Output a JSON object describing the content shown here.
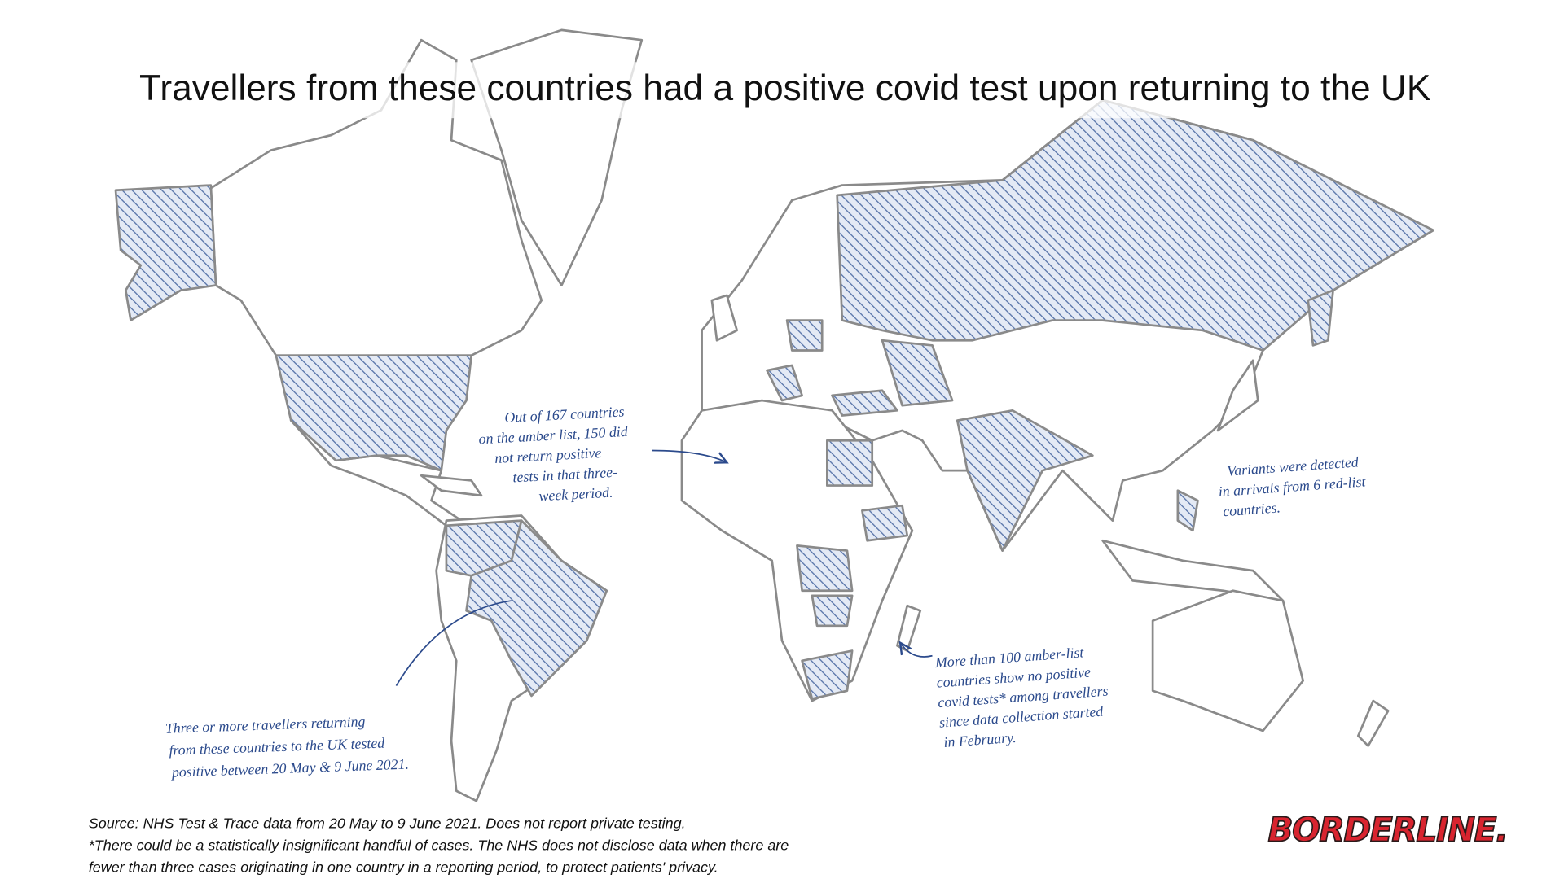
{
  "title": "Travellers from these countries had a positive covid test upon returning to the UK",
  "annotations": [
    {
      "lines": [
        "Out of 167 countries",
        "on the amber list, 150 did",
        "not return positive",
        "tests in that three-",
        "week period."
      ]
    },
    {
      "lines": [
        "Variants were detected",
        "in arrivals from 6 red-list",
        "countries."
      ]
    },
    {
      "lines": [
        "More than 100 amber-list",
        "countries show no positive",
        "covid tests* among travellers",
        "since data collection started",
        "in February."
      ]
    },
    {
      "lines": [
        "Three or more travellers returning",
        "from these countries to the UK tested",
        "positive between 20 May & 9 June 2021."
      ]
    }
  ],
  "source": {
    "lines": [
      "Source: NHS Test & Trace data from 20 May to 9 June 2021. Does not report private testing.",
      "*There could be a statistically insignificant handful of cases. The NHS does not disclose data when there are",
      "fewer than three cases originating in one country in a reporting period, to protect patients' privacy."
    ]
  },
  "logo": "BORDERLINE."
}
